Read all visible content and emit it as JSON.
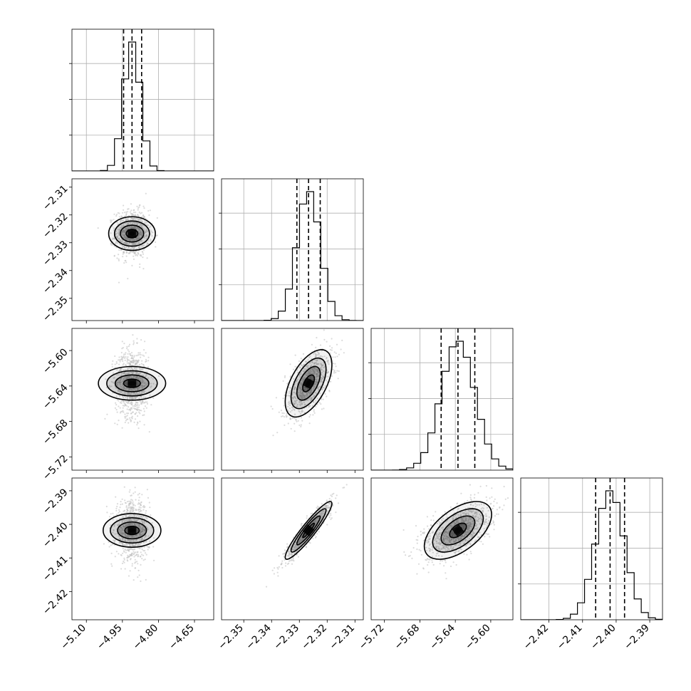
{
  "chart_data": {
    "type": "corner",
    "parameters": [
      {
        "name": "",
        "mean": -4.91,
        "std": 0.035,
        "q16": -4.945,
        "q50": -4.91,
        "q84": -4.87,
        "range": [
          -5.16,
          -4.57
        ],
        "ticks": [
          -5.1,
          -4.95,
          -4.8,
          -4.65
        ],
        "tick_labels": [
          "−5.10",
          "−4.95",
          "−4.80",
          "−4.65"
        ]
      },
      {
        "name": "",
        "mean": -2.3267,
        "std": 0.0042,
        "q16": -2.3309,
        "q50": -2.3267,
        "q84": -2.3225,
        "range": [
          -2.358,
          -2.307
        ],
        "ticks": [
          -2.35,
          -2.34,
          -2.33,
          -2.32,
          -2.31
        ],
        "tick_labels": [
          "−2.35",
          "−2.34",
          "−2.33",
          "−2.32",
          "−2.31"
        ]
      },
      {
        "name": "",
        "mean": -5.637,
        "std": 0.019,
        "q16": -5.656,
        "q50": -5.637,
        "q84": -5.618,
        "range": [
          -5.735,
          -5.575
        ],
        "ticks": [
          -5.72,
          -5.68,
          -5.64,
          -5.6
        ],
        "tick_labels": [
          "−5.72",
          "−5.68",
          "−5.64",
          "−5.60"
        ]
      },
      {
        "name": "",
        "mean": -2.4018,
        "std": 0.0043,
        "q16": -2.4061,
        "q50": -2.4018,
        "q84": -2.3975,
        "range": [
          -2.4284,
          -2.3862
        ],
        "ticks": [
          -2.42,
          -2.41,
          -2.4,
          -2.39
        ],
        "tick_labels": [
          "−2.42",
          "−2.41",
          "−2.40",
          "−2.39"
        ]
      }
    ],
    "correlations": [
      [
        1.0,
        0.0,
        0.0,
        0.0
      ],
      [
        0.0,
        1.0,
        0.55,
        0.93
      ],
      [
        0.0,
        0.55,
        1.0,
        0.55
      ],
      [
        0.0,
        0.93,
        0.55,
        1.0
      ]
    ],
    "histogram_bins": 20,
    "contour_levels_sigma": [
      0.5,
      1.0,
      1.5,
      2.0
    ],
    "quantiles": [
      0.16,
      0.5,
      0.84
    ],
    "grid": true,
    "colors": {
      "line": "#000000",
      "grid": "#b0b0b0",
      "points": "#bdbdbd"
    }
  }
}
